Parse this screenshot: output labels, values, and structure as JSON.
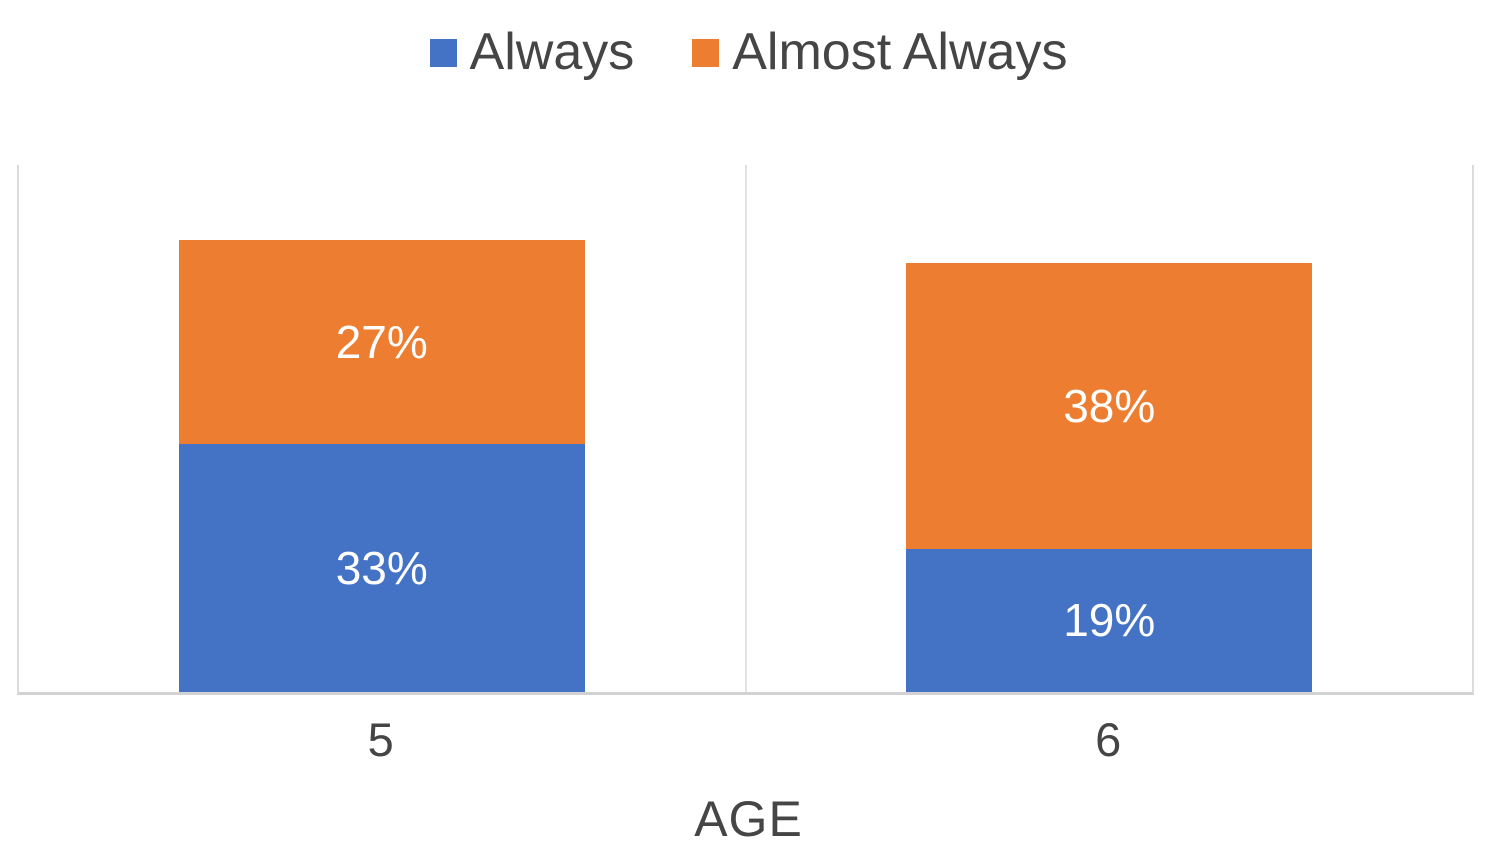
{
  "chart_data": {
    "type": "bar",
    "variant": "stacked-column",
    "categories": [
      "5",
      "6"
    ],
    "series": [
      {
        "name": "Always",
        "color": "#4472C4",
        "values": [
          33,
          19
        ],
        "labels": [
          "33%",
          "19%"
        ]
      },
      {
        "name": "Almost Always",
        "color": "#ED7D31",
        "values": [
          27,
          38
        ],
        "labels": [
          "27%",
          "38%"
        ]
      }
    ],
    "title": "",
    "xlabel": "AGE",
    "ylabel": "",
    "ylim": [
      0,
      70
    ],
    "y_axis_visible": false,
    "grid": "vertical-category-dividers-only",
    "legend_position": "top-center",
    "data_label_color": "#FFFFFF",
    "text_color": "#454545",
    "axis_line_color": "#D2D2D2",
    "gridline_color": "#DCDCDC"
  }
}
